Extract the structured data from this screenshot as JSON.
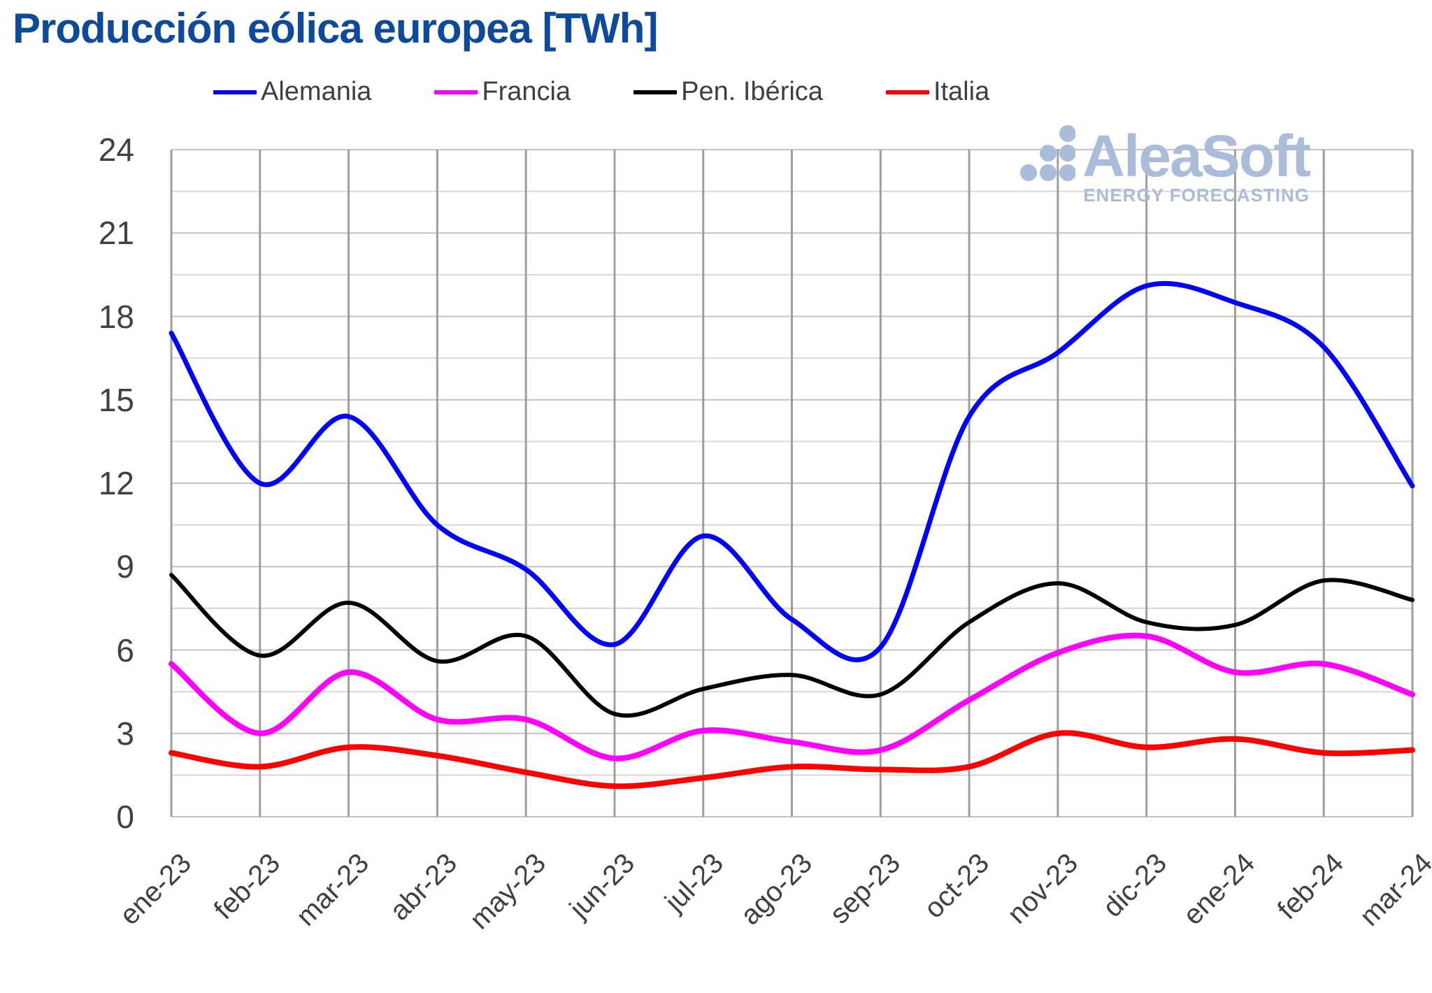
{
  "chart_data": {
    "type": "line",
    "title": "Producción eólica europea [TWh]",
    "xlabel": "",
    "ylabel": "",
    "ylim": [
      0,
      24
    ],
    "yticks": [
      0,
      3,
      6,
      9,
      12,
      15,
      18,
      21,
      24
    ],
    "y_minor_step": 1.5,
    "grid": true,
    "legend_position": "top",
    "categories": [
      "ene-23",
      "feb-23",
      "mar-23",
      "abr-23",
      "may-23",
      "jun-23",
      "jul-23",
      "ago-23",
      "sep-23",
      "oct-23",
      "nov-23",
      "dic-23",
      "ene-24",
      "feb-24",
      "mar-24"
    ],
    "series": [
      {
        "name": "Alemania",
        "color": "#0000ff",
        "values": [
          17.4,
          12.0,
          14.4,
          10.5,
          8.9,
          6.2,
          10.1,
          7.1,
          6.1,
          14.4,
          16.7,
          19.1,
          18.5,
          16.9,
          11.9
        ]
      },
      {
        "name": "Francia",
        "color": "#ff00ff",
        "values": [
          5.5,
          3.0,
          5.2,
          3.5,
          3.5,
          2.1,
          3.1,
          2.7,
          2.4,
          4.2,
          5.9,
          6.5,
          5.2,
          5.5,
          4.4
        ]
      },
      {
        "name": "Pen. Ibérica",
        "color": "#000000",
        "values": [
          8.7,
          5.8,
          7.7,
          5.6,
          6.5,
          3.7,
          4.6,
          5.1,
          4.4,
          7.0,
          8.4,
          7.0,
          6.9,
          8.5,
          7.8
        ]
      },
      {
        "name": "Italia",
        "color": "#ff0000",
        "values": [
          2.3,
          1.8,
          2.5,
          2.2,
          1.6,
          1.1,
          1.4,
          1.8,
          1.7,
          1.8,
          3.0,
          2.5,
          2.8,
          2.3,
          2.4
        ]
      }
    ]
  },
  "logo": {
    "name": "AleaSoft",
    "tagline": "ENERGY FORECASTING",
    "color": "#a9bcd9"
  }
}
